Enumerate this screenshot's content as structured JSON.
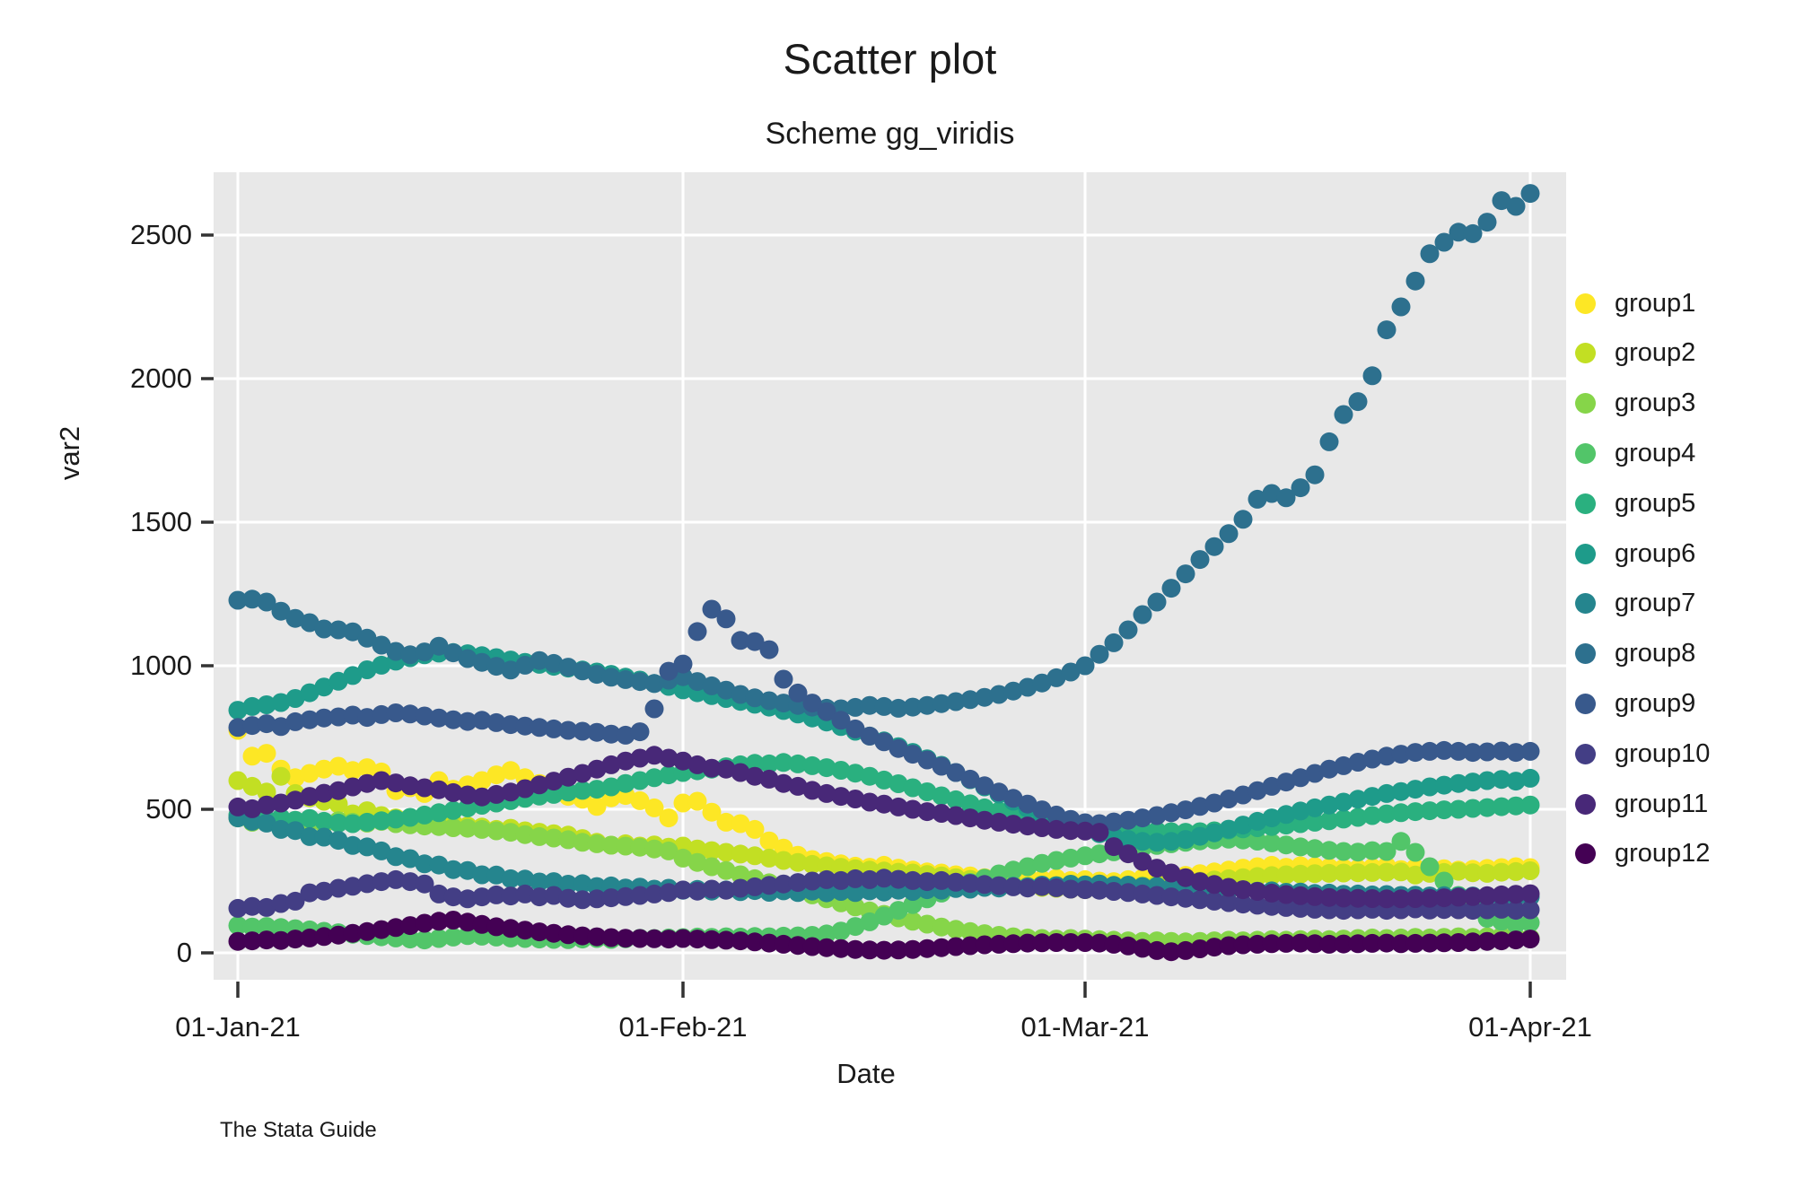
{
  "header": {
    "title": "Scatter plot",
    "subtitle": "Scheme gg_viridis",
    "caption": "The Stata Guide"
  },
  "chart_data": {
    "type": "scatter",
    "title": "Scatter plot",
    "subtitle": "Scheme gg_viridis",
    "xlabel": "Date",
    "ylabel": "var2",
    "x_unit": "days since 01-Jan-21 (one point per day)",
    "x_range_days": [
      0,
      90
    ],
    "ylim": [
      0,
      2700
    ],
    "grid": true,
    "panel_color": "#e8e8e8",
    "gridline_color": "#ffffff",
    "legend_position": "right",
    "y_ticks": [
      {
        "value": 0,
        "label": "0"
      },
      {
        "value": 500,
        "label": "500"
      },
      {
        "value": 1000,
        "label": "1000"
      },
      {
        "value": 1500,
        "label": "1500"
      },
      {
        "value": 2000,
        "label": "2000"
      },
      {
        "value": 2500,
        "label": "2500"
      }
    ],
    "x_ticks": [
      {
        "day": 0,
        "label": "01-Jan-21"
      },
      {
        "day": 31,
        "label": "01-Feb-21"
      },
      {
        "day": 59,
        "label": "01-Mar-21"
      },
      {
        "day": 90,
        "label": "01-Apr-21"
      }
    ],
    "series": [
      {
        "name": "group1",
        "color": "#FDE725",
        "values": [
          775,
          685,
          695,
          640,
          610,
          625,
          640,
          650,
          635,
          645,
          630,
          565,
          575,
          555,
          600,
          570,
          585,
          600,
          620,
          635,
          610,
          590,
          565,
          545,
          535,
          510,
          540,
          548,
          530,
          505,
          470,
          522,
          528,
          490,
          455,
          450,
          430,
          390,
          365,
          340,
          325,
          318,
          310,
          302,
          298,
          305,
          295,
          288,
          282,
          278,
          272,
          268,
          262,
          270,
          258,
          264,
          255,
          260,
          252,
          255,
          250,
          248,
          255,
          260,
          256,
          262,
          270,
          276,
          282,
          288,
          295,
          300,
          305,
          298,
          303,
          300,
          297,
          295,
          293,
          297,
          302,
          290,
          296,
          299,
          293,
          288,
          291,
          294,
          297,
          300,
          297
        ]
      },
      {
        "name": "group2",
        "color": "#C2DF23",
        "values": [
          600,
          580,
          560,
          615,
          555,
          540,
          528,
          518,
          484,
          495,
          478,
          470,
          460,
          455,
          448,
          452,
          442,
          438,
          430,
          434,
          425,
          420,
          415,
          410,
          398,
          385,
          375,
          380,
          372,
          376,
          368,
          372,
          362,
          356,
          350,
          344,
          338,
          330,
          322,
          315,
          308,
          303,
          298,
          293,
          288,
          285,
          281,
          278,
          273,
          268,
          262,
          256,
          250,
          244,
          238,
          233,
          228,
          225,
          222,
          220,
          224,
          227,
          230,
          234,
          238,
          242,
          246,
          250,
          254,
          258,
          262,
          266,
          269,
          272,
          274,
          276,
          277,
          278,
          279,
          280,
          281,
          282,
          271,
          277,
          280,
          284,
          279,
          277,
          281,
          283,
          286
        ]
      },
      {
        "name": "group3",
        "color": "#86D549",
        "values": [
          470,
          455,
          462,
          450,
          452,
          456,
          448,
          460,
          455,
          452,
          458,
          450,
          446,
          442,
          440,
          436,
          434,
          430,
          425,
          420,
          412,
          405,
          400,
          394,
          385,
          380,
          375,
          372,
          368,
          362,
          355,
          330,
          315,
          300,
          287,
          272,
          258,
          244,
          230,
          216,
          202,
          188,
          174,
          160,
          146,
          134,
          122,
          110,
          100,
          90,
          82,
          74,
          67,
          61,
          56,
          52,
          50,
          48,
          50,
          48,
          46,
          44,
          42,
          40,
          42,
          40,
          38,
          40,
          42,
          44,
          42,
          44,
          46,
          44,
          46,
          48,
          46,
          48,
          50,
          52,
          50,
          52,
          54,
          52,
          54,
          56,
          54,
          56,
          58,
          55,
          52
        ]
      },
      {
        "name": "group4",
        "color": "#52C569",
        "values": [
          95,
          90,
          92,
          88,
          84,
          80,
          75,
          70,
          65,
          60,
          56,
          52,
          48,
          45,
          50,
          55,
          60,
          58,
          55,
          52,
          50,
          48,
          47,
          46,
          48,
          50,
          47,
          49,
          51,
          50,
          52,
          53,
          55,
          54,
          56,
          55,
          57,
          56,
          58,
          59,
          61,
          66,
          76,
          92,
          108,
          128,
          148,
          168,
          188,
          208,
          228,
          245,
          260,
          275,
          288,
          300,
          312,
          322,
          330,
          338,
          345,
          352,
          360,
          367,
          374,
          380,
          385,
          390,
          393,
          396,
          393,
          389,
          383,
          376,
          369,
          363,
          357,
          353,
          351,
          356,
          353,
          388,
          350,
          300,
          250,
          200,
          155,
          120,
          110,
          100,
          105
        ]
      },
      {
        "name": "group5",
        "color": "#2AB07F",
        "values": [
          480,
          472,
          465,
          470,
          462,
          468,
          458,
          452,
          450,
          455,
          460,
          466,
          472,
          480,
          488,
          496,
          505,
          514,
          522,
          530,
          538,
          546,
          552,
          560,
          566,
          570,
          578,
          590,
          600,
          610,
          620,
          628,
          634,
          640,
          648,
          655,
          660,
          658,
          663,
          658,
          652,
          645,
          636,
          626,
          615,
          602,
          589,
          575,
          561,
          547,
          533,
          519,
          505,
          493,
          482,
          472,
          464,
          457,
          450,
          445,
          440,
          436,
          432,
          428,
          425,
          422,
          420,
          422,
          425,
          428,
          432,
          436,
          440,
          445,
          450,
          455,
          460,
          466,
          472,
          478,
          484,
          488,
          492,
          495,
          498,
          500,
          503,
          506,
          509,
          512,
          515
        ]
      },
      {
        "name": "group6",
        "color": "#1E9B8A",
        "values": [
          845,
          858,
          864,
          872,
          886,
          906,
          926,
          946,
          966,
          986,
          1002,
          1016,
          1028,
          1038,
          1044,
          1046,
          1042,
          1035,
          1028,
          1020,
          1012,
          1005,
          998,
          992,
          985,
          978,
          970,
          960,
          950,
          938,
          928,
          916,
          906,
          896,
          886,
          876,
          866,
          856,
          844,
          832,
          818,
          804,
          788,
          772,
          755,
          738,
          718,
          698,
          676,
          653,
          628,
          603,
          578,
          553,
          528,
          503,
          480,
          458,
          440,
          428,
          415,
          405,
          395,
          388,
          385,
          388,
          395,
          406,
          418,
          431,
          445,
          458,
          470,
          482,
          494,
          505,
          515,
          525,
          535,
          545,
          555,
          562,
          570,
          578,
          584,
          590,
          595,
          600,
          604,
          598,
          608
        ]
      },
      {
        "name": "group7",
        "color": "#25858E",
        "values": [
          470,
          458,
          452,
          430,
          426,
          405,
          403,
          392,
          374,
          369,
          355,
          335,
          328,
          310,
          306,
          290,
          287,
          272,
          271,
          258,
          257,
          247,
          248,
          239,
          241,
          231,
          233,
          226,
          229,
          222,
          225,
          218,
          221,
          215,
          219,
          213,
          217,
          211,
          216,
          210,
          215,
          209,
          214,
          210,
          216,
          212,
          218,
          214,
          220,
          218,
          224,
          222,
          228,
          226,
          232,
          230,
          236,
          234,
          239,
          237,
          240,
          235,
          236,
          231,
          232,
          227,
          228,
          223,
          224,
          219,
          220,
          215,
          216,
          211,
          212,
          207,
          208,
          204,
          205,
          202,
          203,
          200,
          201,
          198,
          199,
          197,
          198,
          195,
          196,
          194,
          195
        ]
      },
      {
        "name": "group8",
        "color": "#2D708E",
        "values": [
          1228,
          1232,
          1222,
          1190,
          1165,
          1150,
          1128,
          1125,
          1118,
          1096,
          1072,
          1050,
          1038,
          1048,
          1068,
          1045,
          1025,
          1012,
          998,
          985,
          1002,
          1018,
          1008,
          995,
          982,
          970,
          960,
          952,
          945,
          938,
          950,
          962,
          945,
          930,
          915,
          900,
          888,
          878,
          870,
          862,
          856,
          852,
          850,
          855,
          862,
          858,
          852,
          856,
          862,
          868,
          875,
          882,
          890,
          900,
          912,
          925,
          940,
          958,
          978,
          1000,
          1040,
          1080,
          1125,
          1178,
          1222,
          1270,
          1320,
          1370,
          1415,
          1460,
          1510,
          1580,
          1600,
          1585,
          1620,
          1665,
          1780,
          1875,
          1920,
          2010,
          2170,
          2250,
          2340,
          2435,
          2475,
          2510,
          2505,
          2545,
          2620,
          2600,
          2645
        ]
      },
      {
        "name": "group9",
        "color": "#38598C",
        "values": [
          785,
          792,
          798,
          788,
          805,
          812,
          818,
          822,
          828,
          820,
          830,
          836,
          832,
          825,
          818,
          812,
          806,
          810,
          802,
          795,
          790,
          785,
          780,
          775,
          772,
          768,
          762,
          758,
          770,
          850,
          981,
          1006,
          1119,
          1197,
          1163,
          1088,
          1084,
          1056,
          953,
          905,
          870,
          840,
          810,
          780,
          755,
          735,
          712,
          692,
          672,
          650,
          628,
          605,
          582,
          560,
          538,
          518,
          498,
          480,
          465,
          453,
          450,
          456,
          462,
          470,
          478,
          488,
          498,
          510,
          522,
          536,
          550,
          565,
          580,
          595,
          610,
          625,
          640,
          652,
          664,
          675,
          685,
          692,
          698,
          702,
          705,
          702,
          698,
          700,
          703,
          698,
          702
        ]
      },
      {
        "name": "group10",
        "color": "#433E85",
        "values": [
          155,
          162,
          158,
          172,
          180,
          209,
          215,
          225,
          232,
          241,
          248,
          255,
          248,
          240,
          205,
          195,
          188,
          195,
          202,
          198,
          205,
          195,
          200,
          190,
          185,
          188,
          192,
          196,
          200,
          205,
          210,
          219,
          215,
          222,
          218,
          225,
          230,
          235,
          240,
          245,
          250,
          255,
          252,
          258,
          255,
          260,
          256,
          252,
          248,
          252,
          246,
          242,
          238,
          234,
          230,
          226,
          231,
          227,
          222,
          220,
          218,
          214,
          210,
          205,
          200,
          195,
          190,
          185,
          180,
          175,
          170,
          166,
          162,
          158,
          155,
          152,
          150,
          148,
          150,
          152,
          148,
          150,
          153,
          149,
          151,
          150,
          148,
          150,
          152,
          148,
          150
        ]
      },
      {
        "name": "group11",
        "color": "#482878",
        "values": [
          508,
          502,
          515,
          522,
          532,
          545,
          556,
          565,
          578,
          590,
          600,
          592,
          582,
          575,
          568,
          558,
          550,
          543,
          552,
          560,
          572,
          585,
          598,
          612,
          625,
          640,
          655,
          668,
          678,
          688,
          678,
          668,
          655,
          643,
          640,
          628,
          615,
          605,
          590,
          580,
          566,
          555,
          545,
          536,
          525,
          518,
          508,
          500,
          492,
          486,
          478,
          470,
          462,
          455,
          448,
          442,
          436,
          430,
          426,
          424,
          420,
          370,
          345,
          318,
          295,
          278,
          262,
          248,
          238,
          228,
          220,
          214,
          208,
          203,
          199,
          196,
          193,
          191,
          190,
          189,
          188,
          188,
          189,
          190,
          192,
          194,
          196,
          199,
          202,
          204,
          206
        ]
      },
      {
        "name": "group12",
        "color": "#440154",
        "values": [
          40,
          42,
          45,
          43,
          48,
          52,
          57,
          62,
          68,
          74,
          81,
          88,
          95,
          103,
          110,
          114,
          107,
          99,
          91,
          85,
          79,
          73,
          68,
          63,
          59,
          56,
          53,
          51,
          50,
          49,
          48,
          50,
          48,
          46,
          44,
          42,
          38,
          34,
          30,
          26,
          22,
          18,
          15,
          12,
          10,
          9,
          10,
          12,
          15,
          18,
          22,
          25,
          28,
          30,
          32,
          34,
          35,
          36,
          36,
          36,
          34,
          30,
          24,
          16,
          8,
          4,
          8,
          14,
          20,
          25,
          28,
          30,
          32,
          33,
          34,
          32,
          30,
          31,
          32,
          33,
          34,
          32,
          33,
          34,
          35,
          36,
          38,
          40,
          42,
          45,
          48
        ]
      }
    ]
  },
  "legend": {
    "items": [
      {
        "label": "group1",
        "color": "#FDE725"
      },
      {
        "label": "group2",
        "color": "#C2DF23"
      },
      {
        "label": "group3",
        "color": "#86D549"
      },
      {
        "label": "group4",
        "color": "#52C569"
      },
      {
        "label": "group5",
        "color": "#2AB07F"
      },
      {
        "label": "group6",
        "color": "#1E9B8A"
      },
      {
        "label": "group7",
        "color": "#25858E"
      },
      {
        "label": "group8",
        "color": "#2D708E"
      },
      {
        "label": "group9",
        "color": "#38598C"
      },
      {
        "label": "group10",
        "color": "#433E85"
      },
      {
        "label": "group11",
        "color": "#482878"
      },
      {
        "label": "group12",
        "color": "#440154"
      }
    ]
  }
}
